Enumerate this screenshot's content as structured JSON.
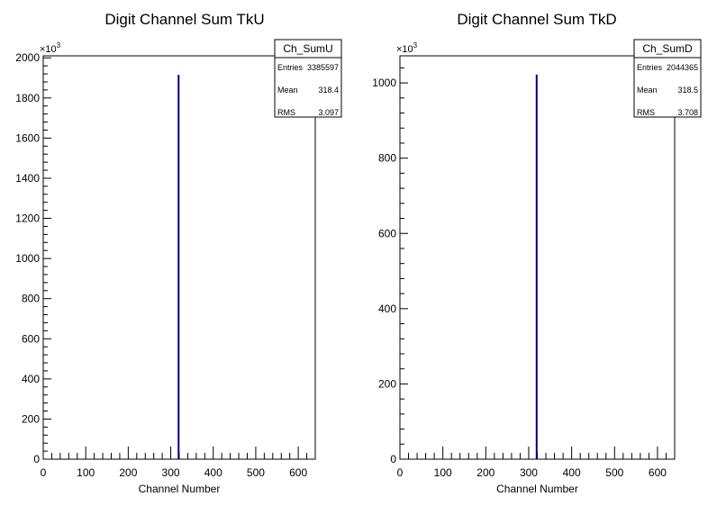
{
  "chart_data": [
    {
      "type": "bar",
      "title": "Digit Channel Sum TkU",
      "xlabel": "Channel Number",
      "ylabel": "",
      "y_multiplier_base": "×10",
      "y_multiplier_exp": "3",
      "xlim": [
        0,
        640
      ],
      "ylim": [
        0,
        2010
      ],
      "x_ticks": [
        0,
        100,
        200,
        300,
        400,
        500,
        600
      ],
      "y_ticks": [
        0,
        200,
        400,
        600,
        800,
        1000,
        1200,
        1400,
        1600,
        1800,
        2000
      ],
      "grid": false,
      "line_color": "#00007f",
      "bins": [
        {
          "x": 318.5,
          "value": 1915
        }
      ],
      "stats_box": {
        "position": "top-right",
        "name": "Ch_SumU",
        "rows": [
          {
            "label": "Entries",
            "value": "3385597"
          },
          {
            "label": "Mean",
            "value": "318.4"
          },
          {
            "label": "RMS",
            "value": "3.097"
          }
        ]
      }
    },
    {
      "type": "bar",
      "title": "Digit Channel Sum TkD",
      "xlabel": "Channel Number",
      "ylabel": "",
      "y_multiplier_base": "×10",
      "y_multiplier_exp": "3",
      "xlim": [
        0,
        640
      ],
      "ylim": [
        0,
        1072
      ],
      "x_ticks": [
        0,
        100,
        200,
        300,
        400,
        500,
        600
      ],
      "y_ticks": [
        0,
        200,
        400,
        600,
        800,
        1000
      ],
      "grid": false,
      "line_color": "#00007f",
      "bins": [
        {
          "x": 318.5,
          "value": 1022
        }
      ],
      "stats_box": {
        "position": "top-right",
        "name": "Ch_SumD",
        "rows": [
          {
            "label": "Entries",
            "value": "2044365"
          },
          {
            "label": "Mean",
            "value": "318.5"
          },
          {
            "label": "RMS",
            "value": "3.708"
          }
        ]
      }
    }
  ]
}
